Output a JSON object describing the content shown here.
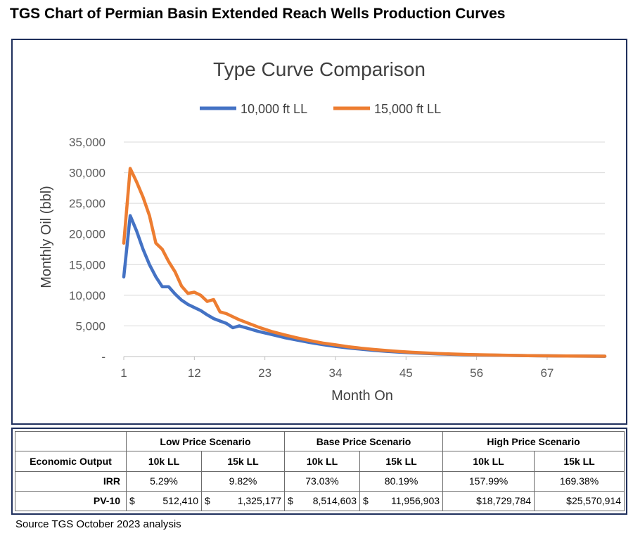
{
  "page_title": "TGS Chart of Permian Basin Extended Reach Wells Production Curves",
  "source_note": "Source TGS October 2023 analysis",
  "colors": {
    "series_10k": "#4472c4",
    "series_15k": "#ed7d31",
    "frame": "#1f2f5c",
    "grid": "#d9d9d9"
  },
  "chart_data": {
    "type": "line",
    "title": "Type Curve Comparison",
    "xlabel": "Month On",
    "ylabel": "Monthly Oil (bbl)",
    "xlim": [
      1,
      76
    ],
    "ylim": [
      0,
      35000
    ],
    "x_ticks": [
      1,
      12,
      23,
      34,
      45,
      56,
      67
    ],
    "y_ticks": [
      0,
      5000,
      10000,
      15000,
      20000,
      25000,
      30000,
      35000
    ],
    "y_tick_labels": [
      "-",
      "5,000",
      "10,000",
      "15,000",
      "20,000",
      "25,000",
      "30,000",
      "35,000"
    ],
    "legend_position": "top-center",
    "series": [
      {
        "name": "10,000 ft LL",
        "x": [
          1,
          2,
          3,
          4,
          5,
          6,
          7,
          8,
          9,
          10,
          11,
          12,
          13,
          14,
          15,
          16,
          17,
          18,
          19,
          20,
          22,
          24,
          26,
          28,
          30,
          32,
          34,
          36,
          38,
          40,
          42,
          44,
          46,
          48,
          50,
          52,
          55,
          58,
          61,
          64,
          67,
          70,
          73,
          76
        ],
        "values": [
          13000,
          23000,
          20500,
          17500,
          15000,
          13000,
          11400,
          11400,
          10200,
          9200,
          8500,
          8000,
          7500,
          6800,
          6200,
          5800,
          5400,
          4700,
          5000,
          4700,
          4100,
          3600,
          3100,
          2700,
          2300,
          1950,
          1650,
          1400,
          1200,
          1000,
          850,
          720,
          610,
          520,
          440,
          370,
          290,
          230,
          180,
          140,
          110,
          85,
          65,
          50
        ]
      },
      {
        "name": "15,000 ft LL",
        "x": [
          1,
          2,
          3,
          4,
          5,
          6,
          7,
          8,
          9,
          10,
          11,
          12,
          13,
          14,
          15,
          16,
          17,
          18,
          19,
          20,
          22,
          24,
          26,
          28,
          30,
          32,
          34,
          36,
          38,
          40,
          42,
          44,
          46,
          48,
          50,
          52,
          55,
          58,
          61,
          64,
          67,
          70,
          73,
          76
        ],
        "values": [
          18500,
          30700,
          28500,
          26000,
          23000,
          18500,
          17500,
          15500,
          13800,
          11500,
          10300,
          10500,
          10000,
          9000,
          9300,
          7300,
          7000,
          6500,
          6000,
          5600,
          4800,
          4100,
          3550,
          3050,
          2600,
          2200,
          1900,
          1600,
          1350,
          1150,
          970,
          820,
          690,
          580,
          490,
          410,
          320,
          250,
          190,
          150,
          115,
          90,
          70,
          55
        ]
      }
    ]
  },
  "table": {
    "scenario_headers": [
      "Low Price Scenario",
      "Base Price Scenario",
      "High Price Scenario"
    ],
    "sub_header_label": "Economic Output",
    "sub_headers": [
      "10k LL",
      "15k LL",
      "10k LL",
      "15k LL",
      "10k LL",
      "15k LL"
    ],
    "irr": {
      "label": "IRR",
      "values": [
        "5.29%",
        "9.82%",
        "73.03%",
        "80.19%",
        "157.99%",
        "169.38%"
      ]
    },
    "pv10": {
      "label": "PV-10",
      "cells": [
        {
          "prefix": "$",
          "amount": "512,410"
        },
        {
          "prefix": "$",
          "amount": "1,325,177"
        },
        {
          "prefix": "$",
          "amount": "8,514,603"
        },
        {
          "prefix": "$",
          "amount": "11,956,903"
        },
        {
          "prefix": "",
          "amount": "$18,729,784"
        },
        {
          "prefix": "",
          "amount": "$25,570,914"
        }
      ]
    }
  }
}
